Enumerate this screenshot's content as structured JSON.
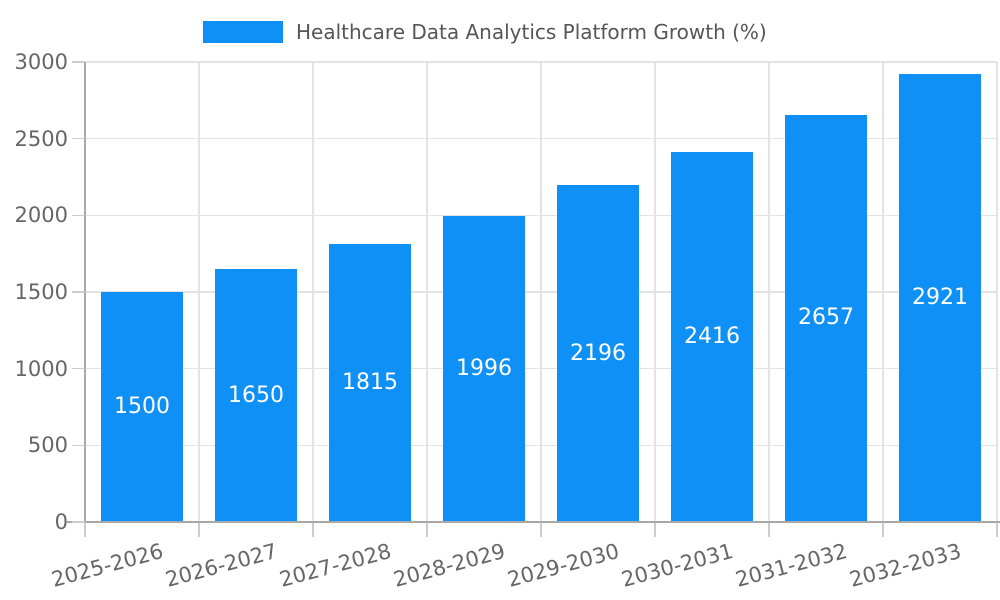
{
  "chart_data": {
    "type": "bar",
    "title": "",
    "legend_label": "Healthcare Data Analytics Platform Growth (%)",
    "legend_position": "top-center",
    "categories": [
      "2025-2026",
      "2026-2027",
      "2027-2028",
      "2028-2029",
      "2029-2030",
      "2030-2031",
      "2031-2032",
      "2032-2033"
    ],
    "values": [
      1500,
      1650,
      1815,
      1996,
      2196,
      2416,
      2657,
      2921
    ],
    "xlabel": "",
    "ylabel": "",
    "ylim": [
      0,
      3000
    ],
    "yticks": [
      0,
      500,
      1000,
      1500,
      2000,
      2500,
      3000
    ],
    "grid": true,
    "value_labels": "inside-center",
    "x_tick_rotation_deg": 15,
    "colors": {
      "bar": "#0e90f6",
      "bar_label": "#ffffff",
      "grid": "#e3e3e3",
      "axis": "#a8a8a8",
      "tick": "#cccccc",
      "tick_label": "#666666",
      "legend_text": "#565656",
      "background": "#ffffff"
    }
  }
}
